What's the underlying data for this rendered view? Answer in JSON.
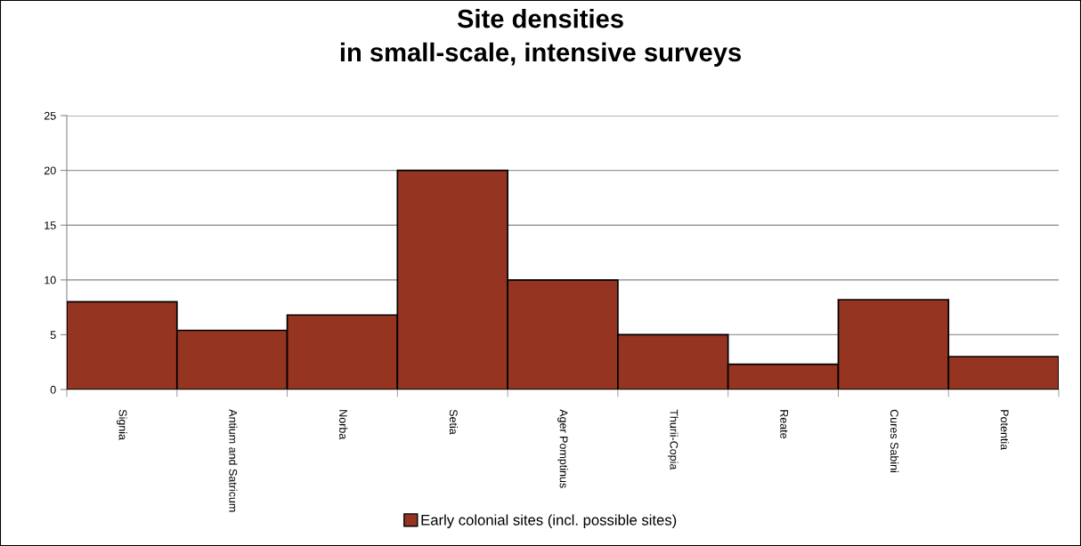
{
  "chart_data": {
    "type": "bar",
    "title": "Site densities\nin small-scale, intensive surveys",
    "categories": [
      "Signia",
      "Antium and Satricum",
      "Norba",
      "Setia",
      "Ager Pomptinus",
      "Thurii-Copia",
      "Reate",
      "Cures Sabini",
      "Potentia"
    ],
    "series": [
      {
        "name": "Early colonial sites (incl. possible sites)",
        "color": "#943421",
        "values": [
          8,
          5.4,
          6.8,
          20,
          10,
          5,
          2.3,
          8.2,
          3
        ]
      }
    ],
    "ylim": [
      0,
      25
    ],
    "yticks": [
      0,
      5,
      10,
      15,
      20,
      25
    ],
    "grid": "y",
    "legend": "bottom"
  }
}
